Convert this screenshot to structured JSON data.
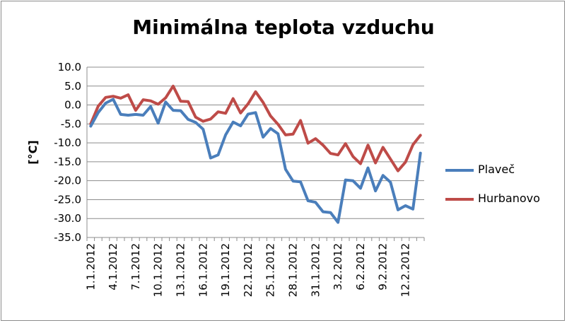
{
  "chart_data": {
    "type": "line",
    "title": "Minimálna teplota vzduchu",
    "ylabel": "[°C]",
    "xlabel": "",
    "ylim": [
      -35,
      10
    ],
    "yticks": [
      "10.0",
      "5.0",
      "0.0",
      "-5.0",
      "-10.0",
      "-15.0",
      "-20.0",
      "-25.0",
      "-30.0",
      "-35.0"
    ],
    "grid": "horizontal",
    "legend_position": "right",
    "x": [
      "1.1.2012",
      "2.1.2012",
      "3.1.2012",
      "4.1.2012",
      "5.1.2012",
      "6.1.2012",
      "7.1.2012",
      "8.1.2012",
      "9.1.2012",
      "10.1.2012",
      "11.1.2012",
      "12.1.2012",
      "13.1.2012",
      "14.1.2012",
      "15.1.2012",
      "16.1.2012",
      "17.1.2012",
      "18.1.2012",
      "19.1.2012",
      "20.1.2012",
      "21.1.2012",
      "22.1.2012",
      "23.1.2012",
      "24.1.2012",
      "25.1.2012",
      "26.1.2012",
      "27.1.2012",
      "28.1.2012",
      "29.1.2012",
      "30.1.2012",
      "31.1.2012",
      "1.2.2012",
      "2.2.2012",
      "3.2.2012",
      "4.2.2012",
      "5.2.2012",
      "6.2.2012",
      "7.2.2012",
      "8.2.2012",
      "9.2.2012",
      "10.2.2012",
      "11.2.2012",
      "12.2.2012",
      "13.2.2012",
      "14.2.2012"
    ],
    "xtick_labels": [
      "1.1.2012",
      "4.1.2012",
      "7.1.2012",
      "10.1.2012",
      "13.1.2012",
      "16.1.2012",
      "19.1.2012",
      "22.1.2012",
      "25.1.2012",
      "28.1.2012",
      "31.1.2012",
      "3.2.2012",
      "6.2.2012",
      "9.2.2012",
      "12.2.2012"
    ],
    "series": [
      {
        "name": "Plaveč",
        "color": "#4a7ebb",
        "values": [
          -5.6,
          -2.0,
          0.5,
          1.5,
          -2.5,
          -2.7,
          -2.5,
          -2.7,
          -0.4,
          -4.8,
          0.8,
          -1.4,
          -1.5,
          -3.8,
          -4.6,
          -6.4,
          -14.0,
          -13.2,
          -7.9,
          -4.5,
          -5.5,
          -2.4,
          -2.0,
          -8.5,
          -6.2,
          -7.6,
          -17.0,
          -20.1,
          -20.3,
          -25.3,
          -25.7,
          -28.2,
          -28.4,
          -31.0,
          -19.8,
          -20.0,
          -22.0,
          -16.6,
          -22.7,
          -18.6,
          -20.4,
          -27.7,
          -26.6,
          -27.5,
          -12.7
        ]
      },
      {
        "name": "Hurbanovo",
        "color": "#be4b48",
        "values": [
          -5.0,
          -0.3,
          2.0,
          2.3,
          1.8,
          2.7,
          -1.4,
          1.4,
          1.1,
          0.2,
          1.9,
          5.0,
          1.0,
          0.9,
          -3.2,
          -4.3,
          -3.7,
          -1.8,
          -2.2,
          1.7,
          -2.1,
          0.3,
          3.5,
          0.7,
          -2.9,
          -5.1,
          -7.9,
          -7.7,
          -4.1,
          -10.1,
          -8.9,
          -10.6,
          -12.8,
          -13.2,
          -10.2,
          -13.6,
          -15.5,
          -10.6,
          -15.3,
          -11.2,
          -14.3,
          -17.4,
          -15.1,
          -10.5,
          -8.0
        ]
      }
    ]
  }
}
